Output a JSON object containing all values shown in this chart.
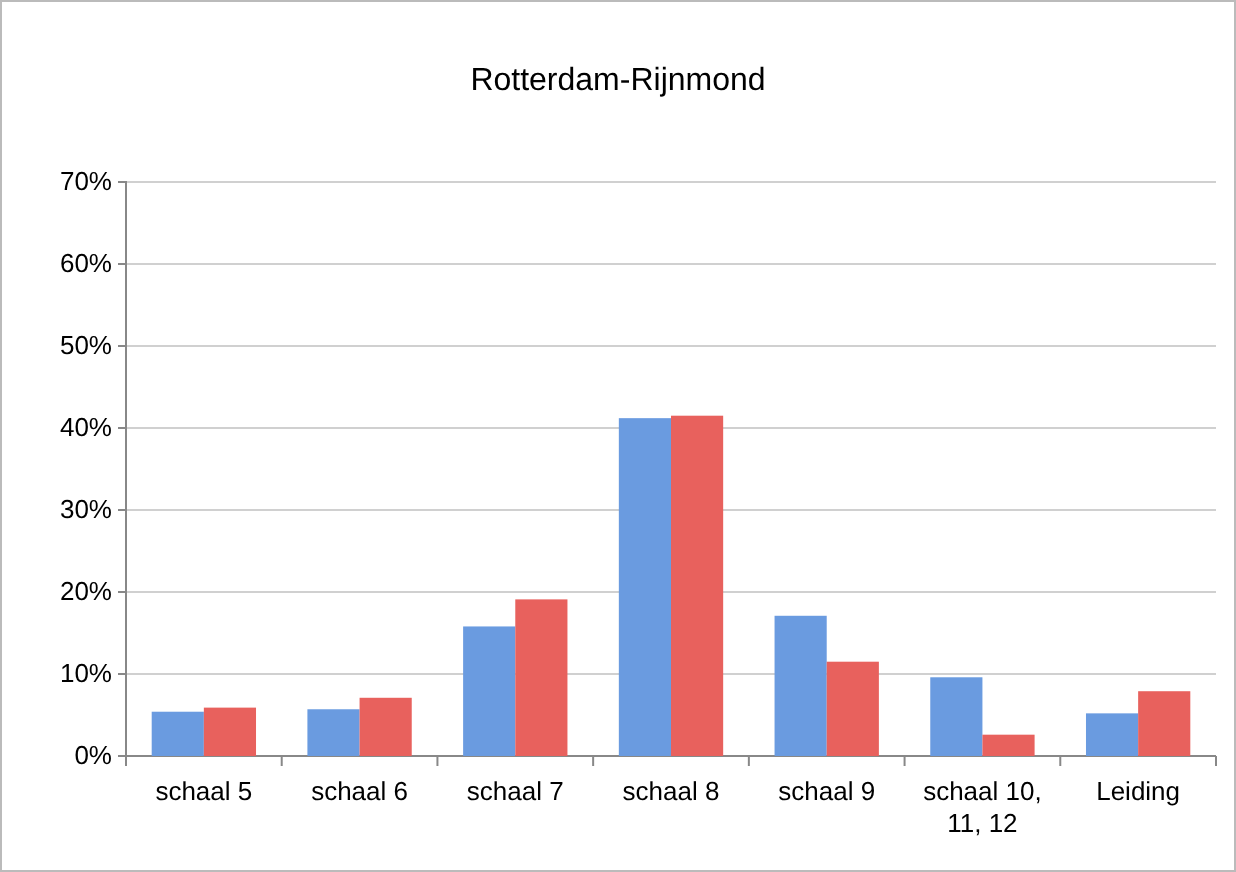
{
  "chart_data": {
    "type": "bar",
    "title": "Rotterdam-Rijnmond",
    "categories": [
      "schaal 5",
      "schaal 6",
      "schaal 7",
      "schaal 8",
      "schaal 9",
      "schaal 10, 11, 12",
      "Leiding"
    ],
    "series": [
      {
        "color": "#6a9be0",
        "values": [
          5.4,
          5.7,
          15.8,
          41.2,
          17.1,
          9.6,
          5.2
        ]
      },
      {
        "color": "#e8615d",
        "values": [
          5.9,
          7.1,
          19.1,
          41.5,
          11.5,
          2.6,
          7.9
        ]
      }
    ],
    "ylim": [
      0,
      70
    ],
    "yticks": [
      {
        "value": 0,
        "label": "0%"
      },
      {
        "value": 10,
        "label": "10%"
      },
      {
        "value": 20,
        "label": "20%"
      },
      {
        "value": 30,
        "label": "30%"
      },
      {
        "value": 40,
        "label": "40%"
      },
      {
        "value": 50,
        "label": "50%"
      },
      {
        "value": 60,
        "label": "60%"
      },
      {
        "value": 70,
        "label": "70%"
      }
    ],
    "grid": "y"
  }
}
